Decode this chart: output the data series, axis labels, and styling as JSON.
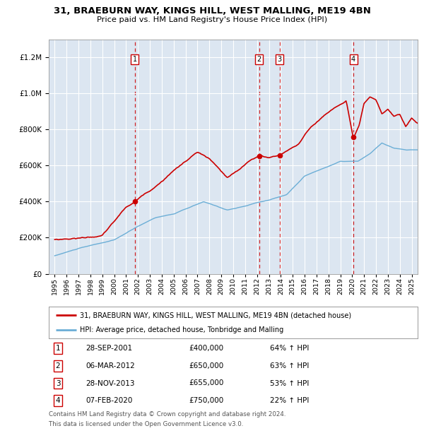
{
  "title1": "31, BRAEBURN WAY, KINGS HILL, WEST MALLING, ME19 4BN",
  "title2": "Price paid vs. HM Land Registry's House Price Index (HPI)",
  "legend_line1": "31, BRAEBURN WAY, KINGS HILL, WEST MALLING, ME19 4BN (detached house)",
  "legend_line2": "HPI: Average price, detached house, Tonbridge and Malling",
  "footer1": "Contains HM Land Registry data © Crown copyright and database right 2024.",
  "footer2": "This data is licensed under the Open Government Licence v3.0.",
  "transactions": [
    {
      "label": "1",
      "date_str": "28-SEP-2001",
      "date_x": 2001.74,
      "price": 400000,
      "pct": "64%",
      "dir": "↑"
    },
    {
      "label": "2",
      "date_str": "06-MAR-2012",
      "date_x": 2012.18,
      "price": 650000,
      "pct": "63%",
      "dir": "↑"
    },
    {
      "label": "3",
      "date_str": "28-NOV-2013",
      "date_x": 2013.91,
      "price": 655000,
      "pct": "53%",
      "dir": "↑"
    },
    {
      "label": "4",
      "date_str": "07-FEB-2020",
      "date_x": 2020.1,
      "price": 750000,
      "pct": "22%",
      "dir": "↑"
    }
  ],
  "red_line_color": "#cc0000",
  "blue_line_color": "#6baed6",
  "dashed_line_color": "#cc0000",
  "plot_bg_color": "#dce6f1",
  "grid_color": "#ffffff",
  "xlim": [
    1994.5,
    2025.5
  ],
  "ylim": [
    0,
    1300000
  ],
  "yticks": [
    0,
    200000,
    400000,
    600000,
    800000,
    1000000,
    1200000
  ]
}
